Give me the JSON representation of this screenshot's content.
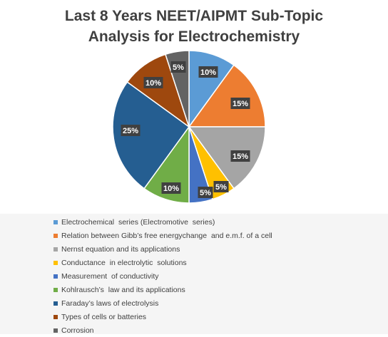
{
  "chart_data": {
    "type": "pie",
    "title_lines": [
      "Last 8 Years NEET/AIPMT Sub-Topic",
      "Analysis for Electrochemistry"
    ],
    "legend_position": "bottom",
    "slices": [
      {
        "label": "Electrochemical  series (Electromotive  series)",
        "value": 10,
        "display": "10%",
        "color": "#5b9bd5"
      },
      {
        "label": "Relation between Gibb’s free energychange  and e.m.f. of a cell",
        "value": 15,
        "display": "15%",
        "color": "#ed7d31"
      },
      {
        "label": "Nernst equation and its applications",
        "value": 15,
        "display": "15%",
        "color": "#a5a5a5"
      },
      {
        "label": "Conductance  in electrolytic  solutions",
        "value": 5,
        "display": "5%",
        "color": "#ffc000"
      },
      {
        "label": "Measurement  of conductivity",
        "value": 5,
        "display": "5%",
        "color": "#4472c4"
      },
      {
        "label": "Kohlrausch’s  law and its applications",
        "value": 10,
        "display": "10%",
        "color": "#70ad47"
      },
      {
        "label": "Faraday’s laws of electrolysis",
        "value": 25,
        "display": "25%",
        "color": "#255e91"
      },
      {
        "label": "Types of cells or batteries",
        "value": 10,
        "display": "10%",
        "color": "#9e480e"
      },
      {
        "label": "Corrosion",
        "value": 5,
        "display": "5%",
        "color": "#636363"
      }
    ]
  }
}
